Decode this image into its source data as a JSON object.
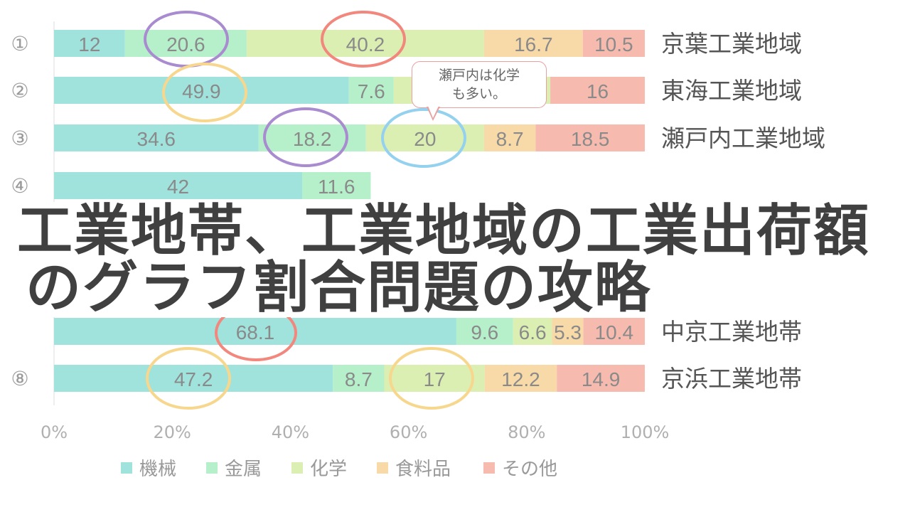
{
  "chart_data": {
    "type": "bar",
    "orientation": "horizontal",
    "stacked": "percent",
    "series_names": [
      "機械",
      "金属",
      "化学",
      "食料品",
      "その他"
    ],
    "colors": [
      "#9fe3dc",
      "#b6f0cb",
      "#dcefb2",
      "#f8d9a8",
      "#f6bbae"
    ],
    "rows": [
      {
        "num": "①",
        "label": "京葉工業地域",
        "values": [
          12,
          20.6,
          40.2,
          16.7,
          10.5
        ]
      },
      {
        "num": "②",
        "label": "東海工業地域",
        "values": [
          49.9,
          7.6,
          null,
          null,
          16
        ]
      },
      {
        "num": "③",
        "label": "瀬戸内工業地域",
        "values": [
          34.6,
          18.2,
          20,
          8.7,
          18.5
        ]
      },
      {
        "num": "④",
        "label": "",
        "values": [
          42,
          11.6,
          null,
          null,
          null
        ]
      },
      {
        "num": "",
        "label": "",
        "values": [
          null,
          null,
          null,
          null,
          null
        ]
      },
      {
        "num": "",
        "label": "",
        "values": [
          null,
          null,
          null,
          null,
          null
        ]
      },
      {
        "num": "",
        "label": "中京工業地帯",
        "values": [
          68.1,
          9.6,
          6.6,
          5.3,
          10.4
        ]
      },
      {
        "num": "⑧",
        "label": "京浜工業地帯",
        "values": [
          47.2,
          8.7,
          17,
          12.2,
          14.9
        ]
      }
    ],
    "xticks": [
      "0%",
      "20%",
      "40%",
      "60%",
      "80%",
      "100%"
    ],
    "xlim": [
      0,
      100
    ],
    "legend_position": "bottom",
    "grid": false
  },
  "callout": {
    "line1": "瀬戸内は化学",
    "line2": "も多い。"
  },
  "title": {
    "line1": "工業地帯、工業地域の工業出荷額",
    "line2": "のグラフ割合問題の攻略"
  }
}
